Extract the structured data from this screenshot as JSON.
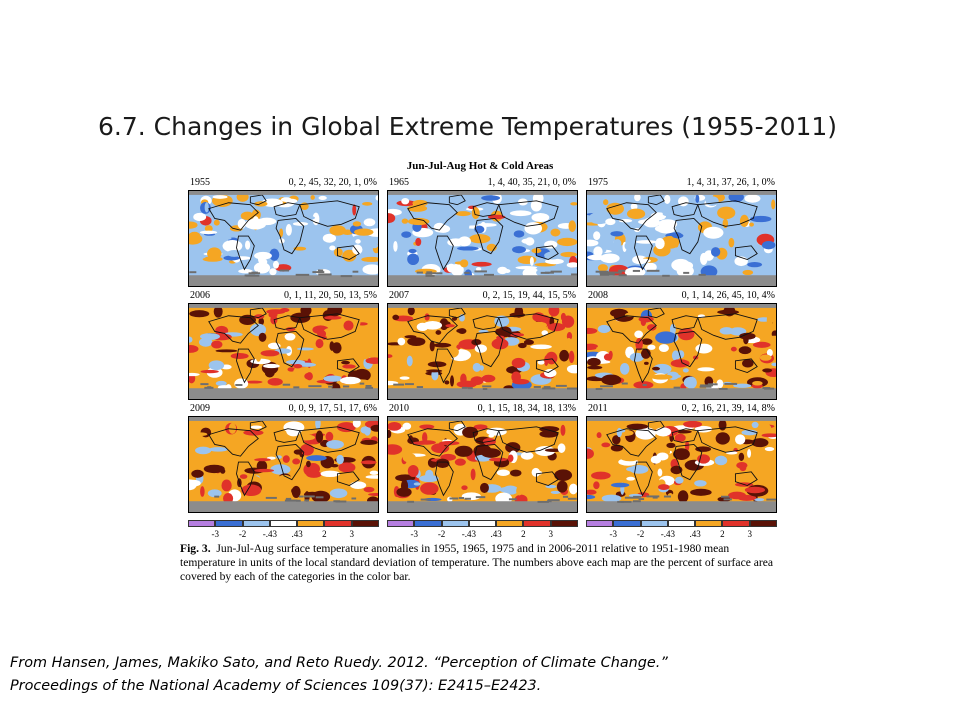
{
  "title": "6.7. Changes in Global Extreme Temperatures (1955-2011)",
  "figure": {
    "header": "Jun-Jul-Aug Hot & Cold Areas",
    "panels": [
      {
        "year": "1955",
        "percents": "0, 2, 45, 32, 20, 1, 0%"
      },
      {
        "year": "1965",
        "percents": "1, 4, 40, 35, 21, 0, 0%"
      },
      {
        "year": "1975",
        "percents": "1, 4, 31, 37, 26, 1, 0%"
      },
      {
        "year": "2006",
        "percents": "0, 1, 11, 20, 50, 13, 5%"
      },
      {
        "year": "2007",
        "percents": "0, 2, 15, 19, 44, 15, 5%"
      },
      {
        "year": "2008",
        "percents": "0, 1, 14, 26, 45, 10, 4%"
      },
      {
        "year": "2009",
        "percents": "0, 0, 9, 17, 51, 17, 6%"
      },
      {
        "year": "2010",
        "percents": "0, 1, 15, 18, 34, 18, 13%"
      },
      {
        "year": "2011",
        "percents": "0, 2, 16, 21, 39, 14, 8%"
      }
    ],
    "colorbar": {
      "colors": [
        "#b57ee0",
        "#3a6fd4",
        "#9cc4ee",
        "#ffffff",
        "#f5a623",
        "#e0322a",
        "#5a1206"
      ],
      "ticks": [
        "-3",
        "-2",
        "-.43",
        ".43",
        "2",
        "3"
      ]
    },
    "caption": {
      "label": "Fig. 3.",
      "text": "Jun-Jul-Aug surface temperature anomalies in 1955, 1965, 1975 and in 2006-2011 relative to 1951-1980 mean temperature in units of the local standard deviation of temperature.  The numbers above each map are the percent of surface area covered by each of the categories in the color bar."
    }
  },
  "citation": {
    "line1": "From Hansen, James, Makiko Sato, and Reto Ruedy. 2012. “Perception of Climate Change.”",
    "line2": "Proceedings of  the National Academy of Sciences 109(37):  E2415–E2423."
  }
}
